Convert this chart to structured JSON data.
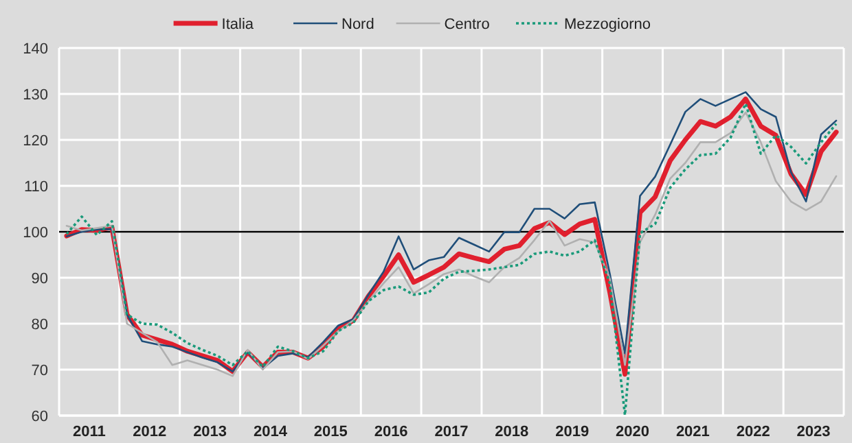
{
  "chart_data": {
    "type": "line",
    "x": [
      2011.125,
      2011.375,
      2011.625,
      2011.875,
      2012.125,
      2012.375,
      2012.625,
      2012.875,
      2013.125,
      2013.375,
      2013.625,
      2013.875,
      2014.125,
      2014.375,
      2014.625,
      2014.875,
      2015.125,
      2015.375,
      2015.625,
      2015.875,
      2016.125,
      2016.375,
      2016.625,
      2016.875,
      2017.125,
      2017.375,
      2017.625,
      2017.875,
      2018.125,
      2018.375,
      2018.625,
      2018.875,
      2019.125,
      2019.375,
      2019.625,
      2019.875,
      2020.125,
      2020.375,
      2020.625,
      2020.875,
      2021.125,
      2021.375,
      2021.625,
      2021.875,
      2022.125,
      2022.375,
      2022.625,
      2022.875,
      2023.125,
      2023.375,
      2023.625,
      2023.875
    ],
    "xlim": [
      2011,
      2024
    ],
    "xticks": [
      {
        "value": 2011,
        "label": null
      },
      {
        "value": 2011.5,
        "label": "2011"
      },
      {
        "value": 2012,
        "label": null
      },
      {
        "value": 2012.5,
        "label": "2012"
      },
      {
        "value": 2013,
        "label": null
      },
      {
        "value": 2013.5,
        "label": "2013"
      },
      {
        "value": 2014,
        "label": null
      },
      {
        "value": 2014.5,
        "label": "2014"
      },
      {
        "value": 2015,
        "label": null
      },
      {
        "value": 2015.5,
        "label": "2015"
      },
      {
        "value": 2016,
        "label": null
      },
      {
        "value": 2016.5,
        "label": "2016"
      },
      {
        "value": 2017,
        "label": null
      },
      {
        "value": 2017.5,
        "label": "2017"
      },
      {
        "value": 2018,
        "label": null
      },
      {
        "value": 2018.5,
        "label": "2018"
      },
      {
        "value": 2019,
        "label": null
      },
      {
        "value": 2019.5,
        "label": "2019"
      },
      {
        "value": 2020,
        "label": null
      },
      {
        "value": 2020.5,
        "label": "2020"
      },
      {
        "value": 2021,
        "label": null
      },
      {
        "value": 2021.5,
        "label": "2021"
      },
      {
        "value": 2022,
        "label": null
      },
      {
        "value": 2022.5,
        "label": "2022"
      },
      {
        "value": 2023,
        "label": null
      },
      {
        "value": 2023.5,
        "label": "2023"
      },
      {
        "value": 2024,
        "label": null
      }
    ],
    "ylim": [
      60,
      140
    ],
    "yticks": [
      60,
      70,
      80,
      90,
      100,
      110,
      120,
      130,
      140
    ],
    "grid": true,
    "legend": "top",
    "marker": "none",
    "ref_lines": [
      {
        "axis": "y",
        "value": 100,
        "color": "#000000"
      }
    ],
    "series": [
      {
        "name": "Italia",
        "color": "#e0202e",
        "line_style": "solid",
        "values": [
          99.1,
          100.5,
          100.3,
          101,
          82,
          77.5,
          76.5,
          75.5,
          74,
          73,
          72,
          69.6,
          73.8,
          70.6,
          73.8,
          73.8,
          72.5,
          75,
          79,
          80.7,
          86,
          90.3,
          95,
          89,
          90.6,
          92.3,
          95.2,
          94.3,
          93.5,
          96.2,
          97,
          100.7,
          102,
          99.4,
          101.7,
          102.7,
          86.8,
          69,
          104.2,
          107.6,
          115.5,
          120,
          124,
          123,
          125,
          128.9,
          123,
          121,
          112.6,
          108.1,
          117.5,
          121.7
        ]
      },
      {
        "name": "Nord",
        "color": "#1f4e79",
        "line_style": "solid",
        "values": [
          99,
          100,
          100.5,
          100.6,
          82,
          76.2,
          75.5,
          75,
          73.8,
          72.6,
          71.6,
          69.6,
          73.8,
          70.3,
          73,
          73.5,
          72.7,
          76,
          79.6,
          81,
          86.3,
          91.3,
          99,
          91.8,
          93.8,
          94.5,
          98.7,
          97.2,
          95.7,
          99.9,
          99.9,
          105,
          105,
          102.9,
          106,
          106.4,
          90.8,
          73.5,
          107.8,
          112,
          119,
          126.1,
          128.9,
          127.4,
          128.9,
          130.4,
          126.7,
          125,
          113,
          106.6,
          121.2,
          124.2
        ]
      },
      {
        "name": "Centro",
        "color": "#b0b0b0",
        "line_style": "solid",
        "values": [
          101.3,
          100.3,
          100.8,
          101.3,
          80,
          78,
          76,
          71,
          72,
          71,
          70,
          68.6,
          74.3,
          70,
          73.8,
          74,
          72.3,
          75.2,
          78.4,
          80.7,
          84.9,
          88.8,
          92.3,
          86.6,
          88.6,
          90.8,
          91.8,
          90.3,
          89,
          92.3,
          94.3,
          98.2,
          102.4,
          97,
          98.4,
          97.7,
          89.8,
          71,
          97.7,
          103.7,
          111.6,
          115,
          119.5,
          119.5,
          121.5,
          126,
          119.5,
          111,
          106.6,
          104.7,
          106.6,
          112.1
        ]
      },
      {
        "name": "Mezzogiorno",
        "color": "#1a9a7a",
        "line_style": "dotted",
        "values": [
          99.5,
          103.3,
          99.3,
          102.3,
          82,
          80,
          79.8,
          78,
          75.8,
          74.3,
          73,
          71,
          74,
          70.6,
          75,
          74,
          72.5,
          74,
          78.4,
          80.2,
          84.9,
          87.3,
          88.1,
          86.3,
          86.8,
          89.8,
          91.3,
          91.5,
          91.8,
          92.3,
          92.8,
          95.2,
          95.7,
          94.8,
          95.7,
          98.2,
          88.8,
          60.1,
          99.7,
          101.7,
          109.6,
          113.6,
          116.7,
          117,
          120.5,
          127.9,
          117,
          121,
          118.5,
          114.9,
          119.5,
          123.5
        ]
      }
    ]
  }
}
